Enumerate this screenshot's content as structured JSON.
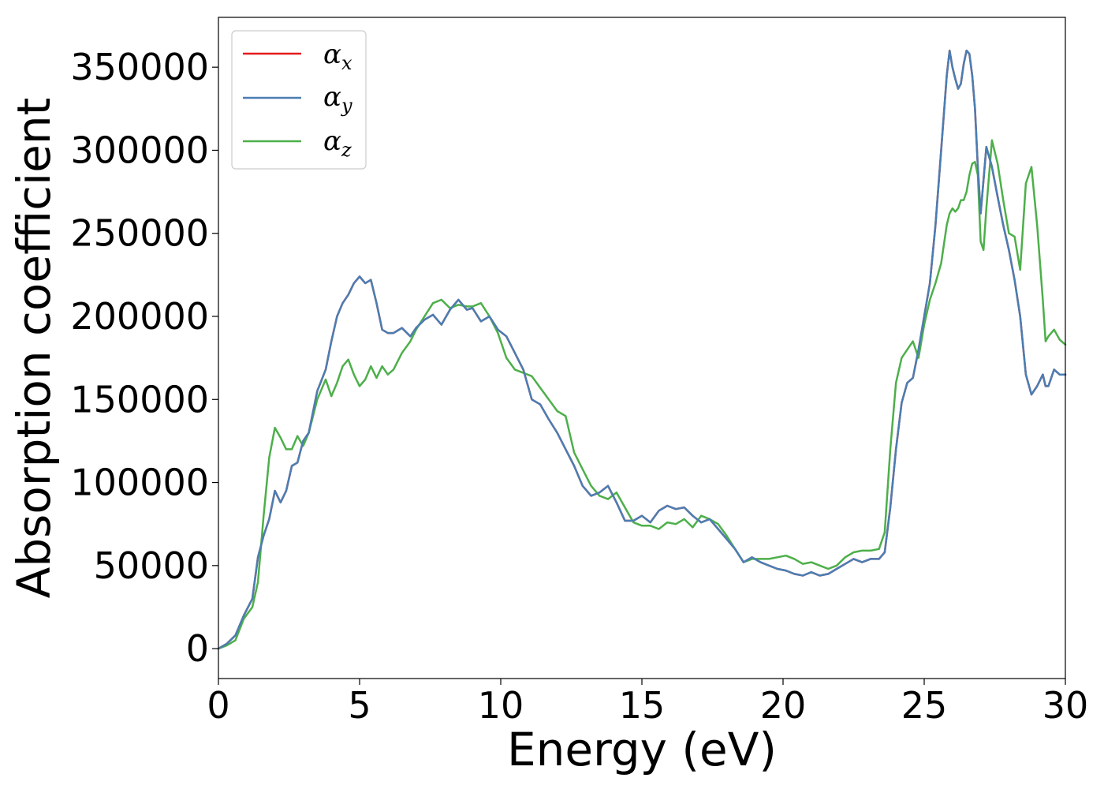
{
  "chart_data": {
    "type": "line",
    "title": "",
    "xlabel": "Energy (eV)",
    "ylabel": "Absorption coefficient",
    "xlim": [
      0,
      30
    ],
    "ylim": [
      -18000,
      380000
    ],
    "xticks": [
      0,
      5,
      10,
      15,
      20,
      25,
      30
    ],
    "yticks": [
      0,
      50000,
      100000,
      150000,
      200000,
      250000,
      300000,
      350000
    ],
    "xtick_labels": [
      "0",
      "5",
      "10",
      "15",
      "20",
      "25",
      "30"
    ],
    "ytick_labels": [
      "0",
      "50000",
      "100000",
      "150000",
      "200000",
      "250000",
      "300000",
      "350000"
    ],
    "grid": false,
    "legend_position": "top-left",
    "series": [
      {
        "name": "α",
        "subscript": "x",
        "color": "#e41a1c",
        "x": [
          0,
          0.3,
          0.6,
          0.9,
          1.2,
          1.4,
          1.6,
          1.8,
          2.0,
          2.2,
          2.4,
          2.6,
          2.8,
          3.0,
          3.2,
          3.5,
          3.8,
          4.0,
          4.2,
          4.4,
          4.6,
          4.8,
          5.0,
          5.2,
          5.4,
          5.6,
          5.8,
          6.0,
          6.2,
          6.5,
          6.8,
          7.0,
          7.3,
          7.6,
          7.9,
          8.2,
          8.5,
          8.8,
          9.0,
          9.3,
          9.6,
          9.9,
          10.2,
          10.5,
          10.8,
          11.1,
          11.4,
          11.7,
          12.0,
          12.3,
          12.6,
          12.9,
          13.2,
          13.5,
          13.8,
          14.1,
          14.4,
          14.7,
          15.0,
          15.3,
          15.6,
          15.9,
          16.2,
          16.5,
          16.8,
          17.1,
          17.4,
          17.7,
          18.0,
          18.3,
          18.6,
          18.9,
          19.2,
          19.5,
          19.8,
          20.1,
          20.4,
          20.7,
          21.0,
          21.3,
          21.6,
          21.9,
          22.2,
          22.5,
          22.8,
          23.1,
          23.4,
          23.6,
          23.8,
          24.0,
          24.2,
          24.4,
          24.6,
          24.8,
          25.0,
          25.2,
          25.4,
          25.6,
          25.8,
          25.9,
          26.0,
          26.1,
          26.2,
          26.3,
          26.4,
          26.5,
          26.6,
          26.7,
          26.8,
          26.9,
          27.0,
          27.1,
          27.2,
          27.4,
          27.6,
          27.8,
          28.0,
          28.2,
          28.4,
          28.6,
          28.8,
          29.0,
          29.2,
          29.3,
          29.4,
          29.6,
          29.8,
          30.0
        ],
        "y": [
          0,
          3000,
          8000,
          20000,
          30000,
          55000,
          68000,
          78000,
          95000,
          88000,
          95000,
          110000,
          112000,
          125000,
          130000,
          155000,
          168000,
          185000,
          200000,
          208000,
          213000,
          220000,
          224000,
          220000,
          222000,
          208000,
          192000,
          190000,
          190000,
          193000,
          188000,
          193000,
          198000,
          201000,
          195000,
          204000,
          210000,
          204000,
          205000,
          197000,
          200000,
          192000,
          188000,
          178000,
          168000,
          150000,
          147000,
          138000,
          130000,
          120000,
          110000,
          98000,
          92000,
          94000,
          98000,
          88000,
          77000,
          77000,
          80000,
          76000,
          83000,
          86000,
          84000,
          85000,
          80000,
          76000,
          78000,
          72000,
          66000,
          60000,
          52000,
          55000,
          52000,
          50000,
          48000,
          47000,
          45000,
          44000,
          46000,
          44000,
          45000,
          48000,
          51000,
          54000,
          52000,
          54000,
          54000,
          58000,
          85000,
          120000,
          148000,
          160000,
          163000,
          180000,
          200000,
          220000,
          255000,
          300000,
          345000,
          360000,
          350000,
          343000,
          337000,
          340000,
          352000,
          360000,
          358000,
          345000,
          325000,
          290000,
          262000,
          282000,
          302000,
          290000,
          272000,
          255000,
          240000,
          222000,
          200000,
          165000,
          153000,
          158000,
          165000,
          158000,
          158000,
          168000,
          165000,
          165000
        ]
      },
      {
        "name": "α",
        "subscript": "y",
        "color": "#4a7eb3",
        "x": [
          0,
          0.3,
          0.6,
          0.9,
          1.2,
          1.4,
          1.6,
          1.8,
          2.0,
          2.2,
          2.4,
          2.6,
          2.8,
          3.0,
          3.2,
          3.5,
          3.8,
          4.0,
          4.2,
          4.4,
          4.6,
          4.8,
          5.0,
          5.2,
          5.4,
          5.6,
          5.8,
          6.0,
          6.2,
          6.5,
          6.8,
          7.0,
          7.3,
          7.6,
          7.9,
          8.2,
          8.5,
          8.8,
          9.0,
          9.3,
          9.6,
          9.9,
          10.2,
          10.5,
          10.8,
          11.1,
          11.4,
          11.7,
          12.0,
          12.3,
          12.6,
          12.9,
          13.2,
          13.5,
          13.8,
          14.1,
          14.4,
          14.7,
          15.0,
          15.3,
          15.6,
          15.9,
          16.2,
          16.5,
          16.8,
          17.1,
          17.4,
          17.7,
          18.0,
          18.3,
          18.6,
          18.9,
          19.2,
          19.5,
          19.8,
          20.1,
          20.4,
          20.7,
          21.0,
          21.3,
          21.6,
          21.9,
          22.2,
          22.5,
          22.8,
          23.1,
          23.4,
          23.6,
          23.8,
          24.0,
          24.2,
          24.4,
          24.6,
          24.8,
          25.0,
          25.2,
          25.4,
          25.6,
          25.8,
          25.9,
          26.0,
          26.1,
          26.2,
          26.3,
          26.4,
          26.5,
          26.6,
          26.7,
          26.8,
          26.9,
          27.0,
          27.1,
          27.2,
          27.4,
          27.6,
          27.8,
          28.0,
          28.2,
          28.4,
          28.6,
          28.8,
          29.0,
          29.2,
          29.3,
          29.4,
          29.6,
          29.8,
          30.0
        ],
        "y": [
          0,
          3000,
          8000,
          20000,
          30000,
          55000,
          68000,
          78000,
          95000,
          88000,
          95000,
          110000,
          112000,
          125000,
          130000,
          155000,
          168000,
          185000,
          200000,
          208000,
          213000,
          220000,
          224000,
          220000,
          222000,
          208000,
          192000,
          190000,
          190000,
          193000,
          188000,
          193000,
          198000,
          201000,
          195000,
          204000,
          210000,
          204000,
          205000,
          197000,
          200000,
          192000,
          188000,
          178000,
          168000,
          150000,
          147000,
          138000,
          130000,
          120000,
          110000,
          98000,
          92000,
          94000,
          98000,
          88000,
          77000,
          77000,
          80000,
          76000,
          83000,
          86000,
          84000,
          85000,
          80000,
          76000,
          78000,
          72000,
          66000,
          60000,
          52000,
          55000,
          52000,
          50000,
          48000,
          47000,
          45000,
          44000,
          46000,
          44000,
          45000,
          48000,
          51000,
          54000,
          52000,
          54000,
          54000,
          58000,
          85000,
          120000,
          148000,
          160000,
          163000,
          180000,
          200000,
          220000,
          255000,
          300000,
          345000,
          360000,
          350000,
          343000,
          337000,
          340000,
          352000,
          360000,
          358000,
          345000,
          325000,
          290000,
          262000,
          282000,
          302000,
          290000,
          272000,
          255000,
          240000,
          222000,
          200000,
          165000,
          153000,
          158000,
          165000,
          158000,
          158000,
          168000,
          165000,
          165000
        ]
      },
      {
        "name": "α",
        "subscript": "z",
        "color": "#4daf4a",
        "x": [
          0,
          0.3,
          0.6,
          0.9,
          1.2,
          1.4,
          1.6,
          1.8,
          2.0,
          2.2,
          2.4,
          2.6,
          2.8,
          3.0,
          3.2,
          3.5,
          3.8,
          4.0,
          4.2,
          4.4,
          4.6,
          4.8,
          5.0,
          5.2,
          5.4,
          5.6,
          5.8,
          6.0,
          6.2,
          6.5,
          6.8,
          7.0,
          7.3,
          7.6,
          7.9,
          8.2,
          8.5,
          8.8,
          9.0,
          9.3,
          9.6,
          9.9,
          10.2,
          10.5,
          10.8,
          11.1,
          11.4,
          11.7,
          12.0,
          12.3,
          12.6,
          12.9,
          13.2,
          13.5,
          13.8,
          14.1,
          14.4,
          14.7,
          15.0,
          15.3,
          15.6,
          15.9,
          16.2,
          16.5,
          16.8,
          17.1,
          17.4,
          17.7,
          18.0,
          18.3,
          18.6,
          18.9,
          19.2,
          19.5,
          19.8,
          20.1,
          20.4,
          20.7,
          21.0,
          21.3,
          21.6,
          21.9,
          22.2,
          22.5,
          22.8,
          23.1,
          23.4,
          23.6,
          23.8,
          24.0,
          24.2,
          24.4,
          24.6,
          24.8,
          25.0,
          25.2,
          25.4,
          25.6,
          25.8,
          25.9,
          26.0,
          26.1,
          26.2,
          26.3,
          26.4,
          26.5,
          26.6,
          26.7,
          26.8,
          26.9,
          27.0,
          27.1,
          27.2,
          27.4,
          27.6,
          27.8,
          28.0,
          28.2,
          28.4,
          28.6,
          28.8,
          29.0,
          29.2,
          29.3,
          29.4,
          29.6,
          29.8,
          30.0
        ],
        "y": [
          0,
          2000,
          5000,
          18000,
          25000,
          40000,
          80000,
          115000,
          133000,
          127000,
          120000,
          120000,
          128000,
          122000,
          130000,
          150000,
          162000,
          152000,
          160000,
          170000,
          174000,
          165000,
          158000,
          162000,
          170000,
          163000,
          170000,
          165000,
          168000,
          178000,
          185000,
          192000,
          200000,
          208000,
          210000,
          205000,
          207000,
          206000,
          206000,
          208000,
          200000,
          190000,
          175000,
          168000,
          166000,
          164000,
          157000,
          150000,
          143000,
          140000,
          118000,
          108000,
          98000,
          92000,
          90000,
          94000,
          85000,
          76000,
          74000,
          74000,
          72000,
          76000,
          75000,
          78000,
          73000,
          80000,
          78000,
          75000,
          68000,
          60000,
          52000,
          54000,
          54000,
          54000,
          55000,
          56000,
          54000,
          51000,
          52000,
          50000,
          48000,
          50000,
          55000,
          58000,
          59000,
          59000,
          60000,
          70000,
          120000,
          160000,
          175000,
          180000,
          185000,
          175000,
          195000,
          210000,
          220000,
          232000,
          255000,
          262000,
          265000,
          263000,
          265000,
          270000,
          270000,
          275000,
          285000,
          292000,
          293000,
          285000,
          245000,
          240000,
          265000,
          306000,
          292000,
          270000,
          250000,
          248000,
          228000,
          280000,
          290000,
          255000,
          210000,
          185000,
          188000,
          192000,
          186000,
          183000
        ]
      }
    ]
  }
}
